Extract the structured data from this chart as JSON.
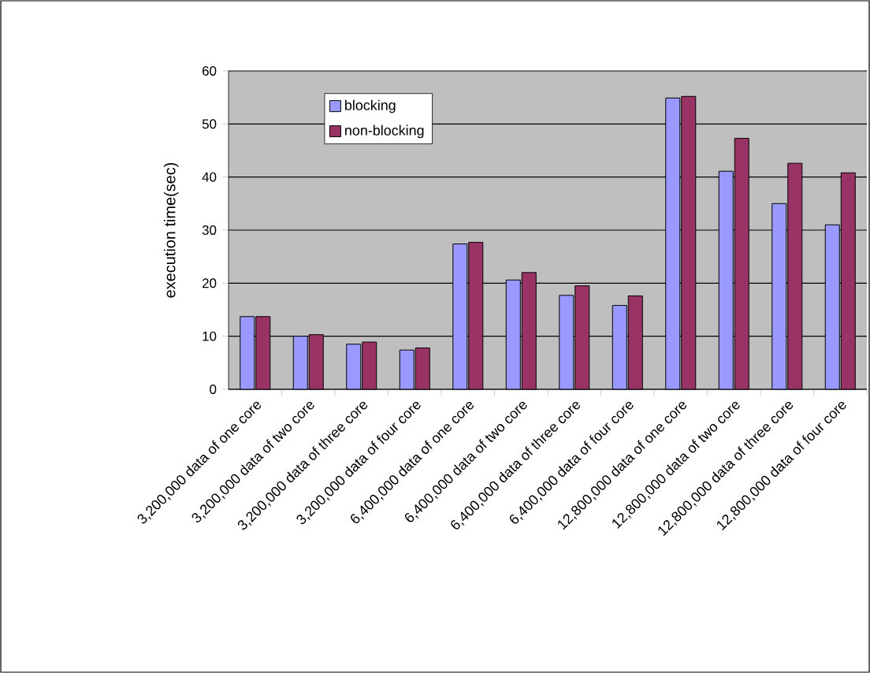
{
  "chart_data": {
    "type": "bar",
    "ylabel": "execution  time(sec)",
    "categories": [
      "3,200,000 data of one core",
      "3,200,000 data of  two core",
      "3,200,000 data of three core",
      "3,200,000 data of  four core",
      "6,400,000 data of one core",
      "6,400,000 data of two core",
      "6,400,000 data of three core",
      "6,400,000 data of four core",
      "12,800,000 data of one core",
      "12,800,000 data of two core",
      "12,800,000 data of three core",
      "12,800,000 data of four core"
    ],
    "series": [
      {
        "name": "blocking",
        "color": "#9999ff",
        "values": [
          13.7,
          10.0,
          8.5,
          7.4,
          27.4,
          20.6,
          17.7,
          15.8,
          54.9,
          41.1,
          35.0,
          31.0
        ]
      },
      {
        "name": "non-blocking",
        "color": "#993366",
        "values": [
          13.7,
          10.3,
          8.9,
          7.8,
          27.7,
          22.0,
          19.5,
          17.6,
          55.2,
          47.3,
          42.6,
          40.8
        ]
      }
    ],
    "ylim": [
      0,
      60
    ],
    "yticks": [
      0,
      10,
      20,
      30,
      40,
      50,
      60
    ],
    "grid": "y",
    "legend": "top left"
  }
}
